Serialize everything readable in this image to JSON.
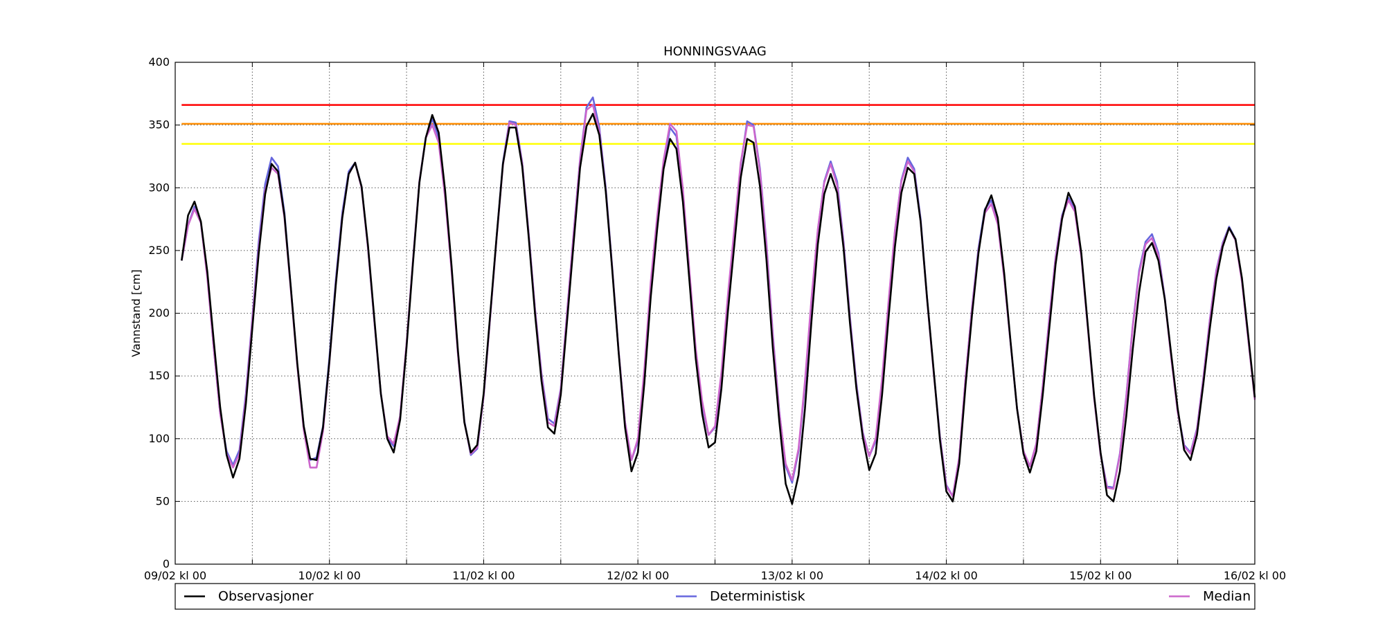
{
  "chart_data": {
    "type": "line",
    "title": "HONNINGSVAAG",
    "xlabel": "",
    "ylabel": "Vannstand [cm]",
    "ylim": [
      0,
      400
    ],
    "xlim": [
      0,
      168
    ],
    "x_unit": "hours since 09/02 kl 00",
    "yticks": [
      0,
      50,
      100,
      150,
      200,
      250,
      300,
      350,
      400
    ],
    "xticks": [
      {
        "x": 0,
        "label": "09/02 kl 00"
      },
      {
        "x": 12,
        "label": ""
      },
      {
        "x": 24,
        "label": "10/02 kl 00"
      },
      {
        "x": 36,
        "label": ""
      },
      {
        "x": 48,
        "label": "11/02 kl 00"
      },
      {
        "x": 60,
        "label": ""
      },
      {
        "x": 72,
        "label": "12/02 kl 00"
      },
      {
        "x": 84,
        "label": ""
      },
      {
        "x": 96,
        "label": "13/02 kl 00"
      },
      {
        "x": 108,
        "label": ""
      },
      {
        "x": 120,
        "label": "14/02 kl 00"
      },
      {
        "x": 132,
        "label": ""
      },
      {
        "x": 144,
        "label": "15/02 kl 00"
      },
      {
        "x": 156,
        "label": ""
      },
      {
        "x": 168,
        "label": "16/02 kl 00"
      }
    ],
    "grid": true,
    "legend_position": "bottom",
    "thresholds": [
      {
        "value": 366,
        "color": "#ff0000"
      },
      {
        "value": 351,
        "color": "#ff8c00"
      },
      {
        "value": 335,
        "color": "#ffff00"
      }
    ],
    "series": [
      {
        "name": "Observasjoner",
        "color": "#000000",
        "x": [
          1,
          2,
          3,
          4,
          5,
          6,
          7,
          8,
          9,
          10,
          11,
          12,
          13,
          14,
          15,
          16,
          17,
          18,
          19,
          20,
          21,
          22,
          23,
          24,
          25,
          26,
          27,
          28,
          29,
          30,
          31,
          32,
          33,
          34,
          35,
          36,
          37,
          38,
          39,
          40,
          41,
          42,
          43,
          44,
          45,
          46,
          47,
          48,
          49,
          50,
          51,
          52,
          53,
          54,
          55,
          56,
          57,
          58,
          59,
          60,
          61,
          62,
          63,
          64,
          65,
          66,
          67,
          68,
          69,
          70,
          71,
          72,
          73,
          74,
          75,
          76,
          77,
          78,
          79,
          80,
          81,
          82,
          83,
          84,
          85,
          86,
          87,
          88,
          89,
          90,
          91,
          92,
          93,
          94,
          95,
          96,
          97,
          98,
          99,
          100,
          101,
          102,
          103,
          104,
          105,
          106,
          107,
          108,
          109,
          110,
          111,
          112,
          113,
          114,
          115,
          116,
          117,
          118,
          119,
          120,
          121,
          122,
          123,
          124,
          125,
          126,
          127,
          128,
          129,
          130,
          131,
          132,
          133,
          134,
          135,
          136,
          137,
          138,
          139,
          140,
          141,
          142,
          143,
          144,
          145,
          146,
          147,
          148,
          149,
          150,
          151,
          152,
          153,
          154,
          155,
          156,
          157,
          158,
          159,
          160,
          161,
          162,
          163,
          164,
          165,
          166,
          167,
          168
        ],
        "values": [
          242,
          278,
          289,
          273,
          233,
          178,
          125,
          87,
          69,
          84,
          128,
          188,
          248,
          295,
          319,
          313,
          278,
          220,
          160,
          110,
          84,
          83,
          109,
          162,
          223,
          276,
          311,
          320,
          301,
          254,
          195,
          136,
          100,
          89,
          115,
          173,
          240,
          304,
          340,
          358,
          344,
          298,
          238,
          170,
          113,
          89,
          95,
          136,
          198,
          260,
          319,
          348,
          348,
          317,
          261,
          199,
          146,
          109,
          104,
          135,
          195,
          256,
          316,
          349,
          359,
          342,
          297,
          235,
          169,
          109,
          74,
          89,
          144,
          213,
          267,
          315,
          339,
          331,
          289,
          227,
          164,
          120,
          93,
          97,
          140,
          201,
          254,
          308,
          339,
          336,
          301,
          243,
          172,
          114,
          64,
          48,
          71,
          124,
          193,
          255,
          295,
          311,
          296,
          252,
          192,
          140,
          101,
          75,
          88,
          135,
          196,
          253,
          296,
          316,
          311,
          273,
          212,
          156,
          99,
          58,
          50,
          80,
          143,
          199,
          248,
          282,
          294,
          276,
          232,
          177,
          124,
          88,
          73,
          90,
          135,
          187,
          239,
          275,
          296,
          285,
          248,
          191,
          134,
          89,
          55,
          50,
          74,
          118,
          171,
          217,
          249,
          256,
          242,
          211,
          167,
          124,
          91,
          83,
          103,
          144,
          188,
          227,
          253,
          268,
          259,
          228,
          181,
          133
        ]
      },
      {
        "name": "Deterministisk",
        "color": "#6666dd",
        "x": [
          1,
          2,
          3,
          4,
          5,
          6,
          7,
          8,
          9,
          10,
          11,
          12,
          13,
          14,
          15,
          16,
          17,
          18,
          19,
          20,
          21,
          22,
          23,
          24,
          25,
          26,
          27,
          28,
          29,
          30,
          31,
          32,
          33,
          34,
          35,
          36,
          37,
          38,
          39,
          40,
          41,
          42,
          43,
          44,
          45,
          46,
          47,
          48,
          49,
          50,
          51,
          52,
          53,
          54,
          55,
          56,
          57,
          58,
          59,
          60,
          61,
          62,
          63,
          64,
          65,
          66,
          67,
          68,
          69,
          70,
          71,
          72,
          73,
          74,
          75,
          76,
          77,
          78,
          79,
          80,
          81,
          82,
          83,
          84,
          85,
          86,
          87,
          88,
          89,
          90,
          91,
          92,
          93,
          94,
          95,
          96,
          97,
          98,
          99,
          100,
          101,
          102,
          103,
          104,
          105,
          106,
          107,
          108,
          109,
          110,
          111,
          112,
          113,
          114,
          115,
          116,
          117,
          118,
          119,
          120,
          121,
          122,
          123,
          124,
          125,
          126,
          127,
          128,
          129,
          130,
          131,
          132,
          133,
          134,
          135,
          136,
          137,
          138,
          139,
          140,
          141,
          142,
          143,
          144,
          145,
          146,
          147,
          148,
          149,
          150,
          151,
          152,
          153,
          154,
          155,
          156,
          157,
          158,
          159,
          160,
          161,
          162,
          163,
          164,
          165,
          166,
          167,
          168
        ],
        "values": [
          242,
          270,
          285,
          272,
          230,
          172,
          120,
          90,
          79,
          91,
          136,
          196,
          257,
          303,
          324,
          317,
          280,
          220,
          159,
          110,
          83,
          85,
          110,
          165,
          227,
          280,
          313,
          320,
          301,
          252,
          193,
          136,
          101,
          94,
          118,
          175,
          242,
          305,
          340,
          355,
          340,
          295,
          236,
          168,
          114,
          87,
          92,
          134,
          196,
          260,
          320,
          353,
          352,
          320,
          264,
          203,
          152,
          116,
          112,
          140,
          202,
          264,
          323,
          364,
          372,
          348,
          300,
          237,
          170,
          113,
          83,
          98,
          152,
          222,
          272,
          318,
          348,
          341,
          295,
          231,
          168,
          127,
          103,
          109,
          150,
          211,
          264,
          318,
          353,
          350,
          315,
          256,
          183,
          122,
          78,
          65,
          90,
          143,
          209,
          266,
          305,
          321,
          305,
          257,
          197,
          144,
          105,
          86,
          98,
          146,
          207,
          265,
          306,
          324,
          315,
          275,
          212,
          155,
          102,
          63,
          54,
          85,
          149,
          205,
          252,
          283,
          290,
          273,
          229,
          176,
          124,
          90,
          78,
          96,
          142,
          195,
          245,
          278,
          292,
          282,
          246,
          190,
          133,
          88,
          62,
          61,
          88,
          134,
          190,
          234,
          257,
          263,
          248,
          212,
          165,
          122,
          95,
          89,
          108,
          149,
          195,
          234,
          256,
          269,
          259,
          226,
          179,
          132
        ]
      },
      {
        "name": "Median",
        "color": "#cc66cc",
        "x": [
          1,
          2,
          3,
          4,
          5,
          6,
          7,
          8,
          9,
          10,
          11,
          12,
          13,
          14,
          15,
          16,
          17,
          18,
          19,
          20,
          21,
          22,
          23,
          24,
          25,
          26,
          27,
          28,
          29,
          30,
          31,
          32,
          33,
          34,
          35,
          36,
          37,
          38,
          39,
          40,
          41,
          42,
          43,
          44,
          45,
          46,
          47,
          48,
          49,
          50,
          51,
          52,
          53,
          54,
          55,
          56,
          57,
          58,
          59,
          60,
          61,
          62,
          63,
          64,
          65,
          66,
          67,
          68,
          69,
          70,
          71,
          72,
          73,
          74,
          75,
          76,
          77,
          78,
          79,
          80,
          81,
          82,
          83,
          84,
          85,
          86,
          87,
          88,
          89,
          90,
          91,
          92,
          93,
          94,
          95,
          96,
          97,
          98,
          99,
          100,
          101,
          102,
          103,
          104,
          105,
          106,
          107,
          108,
          109,
          110,
          111,
          112,
          113,
          114,
          115,
          116,
          117,
          118,
          119,
          120,
          121,
          122,
          123,
          124,
          125,
          126,
          127,
          128,
          129,
          130,
          131,
          132,
          133,
          134,
          135,
          136,
          137,
          138,
          139,
          140,
          141,
          142,
          143,
          144,
          145,
          146,
          147,
          148,
          149,
          150,
          151,
          152,
          153,
          154,
          155,
          156,
          157,
          158,
          159,
          160,
          161,
          162,
          163,
          164,
          165,
          166,
          167,
          168
        ],
        "values": [
          242,
          270,
          283,
          272,
          228,
          172,
          120,
          88,
          77,
          88,
          133,
          194,
          252,
          298,
          316,
          311,
          276,
          218,
          158,
          107,
          77,
          77,
          106,
          161,
          224,
          277,
          311,
          320,
          300,
          252,
          193,
          136,
          102,
          96,
          118,
          176,
          242,
          305,
          340,
          350,
          336,
          292,
          234,
          167,
          113,
          88,
          93,
          134,
          196,
          259,
          318,
          352,
          350,
          319,
          263,
          202,
          150,
          113,
          110,
          139,
          201,
          263,
          322,
          362,
          366,
          345,
          298,
          236,
          170,
          113,
          83,
          100,
          155,
          225,
          277,
          322,
          351,
          345,
          299,
          235,
          172,
          130,
          103,
          110,
          153,
          214,
          267,
          320,
          350,
          349,
          313,
          254,
          181,
          121,
          80,
          67,
          92,
          146,
          211,
          267,
          304,
          319,
          302,
          255,
          195,
          142,
          104,
          86,
          100,
          148,
          209,
          266,
          305,
          321,
          313,
          273,
          211,
          154,
          101,
          62,
          54,
          85,
          149,
          204,
          250,
          280,
          287,
          271,
          228,
          176,
          124,
          90,
          78,
          96,
          142,
          194,
          244,
          277,
          290,
          281,
          245,
          189,
          132,
          87,
          61,
          60,
          87,
          133,
          189,
          232,
          255,
          260,
          246,
          211,
          164,
          121,
          94,
          88,
          107,
          148,
          194,
          233,
          255,
          268,
          258,
          225,
          178,
          131
        ]
      }
    ]
  }
}
